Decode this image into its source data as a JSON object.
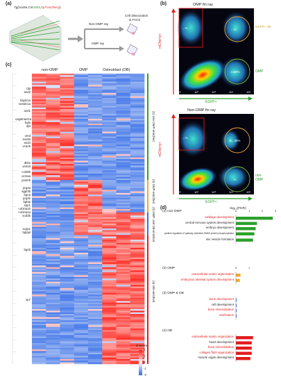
{
  "panel_a": {
    "letter": "(a)",
    "genotype_prefix": "Tg(sox9a Cre;",
    "genotype_ebs": "EBS",
    "genotype_sep": ";",
    "genotype_sp7": "sp7:mCherry",
    "genotype_suffix": ")",
    "arrow_top_label": "Non-OMP ray",
    "arrow_bottom_label": "OMP ray",
    "result_label_1": "Cell dissociation",
    "result_label_2": "& FACS"
  },
  "panel_b": {
    "letter": "(b)",
    "plot1_title": "OMP fin ray",
    "plot2_title": "Non-OMP fin ray",
    "y_axis_label": "mCherry+",
    "x_axis_label": "EGFP+",
    "y_ticks": [
      "10⁵",
      "10⁴",
      "10³",
      "10²",
      "10¹"
    ],
    "x_ticks": [
      "10¹",
      "10²",
      "10³",
      "10⁴",
      "10⁵"
    ],
    "plot1_gate_top_right": "EGFP+ Ob",
    "plot1_gate_bottom_right": "OMP",
    "plot1_pct_left": "...%",
    "plot1_pct_right": "...%",
    "plot1_pct_low": "4.50%",
    "plot2_gate_bottom_right_1": "non-",
    "plot2_gate_bottom_right_2": "OMP",
    "plot2_pct_left": "...%",
    "plot2_pct_right": "E...26%",
    "plot2_pct_low": "...%"
  },
  "panel_c": {
    "letter": "(c)",
    "col_headers": [
      "non-OMP",
      "OMP",
      "Osteoblast (OB)"
    ],
    "genes": [
      "clip",
      "and2",
      "hapln1a",
      "sostdc1a",
      "and1",
      "cagalnact1a",
      "bgla",
      "dpt",
      "omd",
      "sox9a",
      "and4",
      "vcanb",
      "dkk2",
      "wnt16",
      "col28b",
      "ucmaa",
      "postnb",
      "prg4a",
      "agpl3b",
      "bgna",
      "prg4b",
      "bglap",
      "spp1",
      "col10a1b",
      "col10a1a",
      "sod3b",
      "scpp1",
      "bglapl",
      "bgnb",
      "sp7"
    ],
    "cluster_labels": [
      "(1) non-OMP-enriched",
      "(2) OMP-enriched",
      "(3) OMP- and OB-enriched",
      "(4) OB-enriched"
    ],
    "colorbar_title": "Z-score",
    "colorbar_ticks": [
      "2",
      "1",
      "0",
      "-1",
      "-2"
    ]
  },
  "panel_d": {
    "letter": "(d)",
    "axis_label": "-log₁₀(FDR)",
    "groups": [
      {
        "title": "(1) non-OMP",
        "ticks": [
          "0",
          "1",
          "2",
          "3"
        ],
        "terms": [
          {
            "label": "cartilage development",
            "value": 2.8,
            "highlight": true
          },
          {
            "label": "central nervous system development",
            "value": 1.6,
            "highlight": false
          },
          {
            "label": "embryo development",
            "value": 1.5,
            "highlight": false
          },
          {
            "label": "positive regulation of pathway-restricted SMAD protein phosphorylation",
            "value": 1.4,
            "highlight": false
          },
          {
            "label": "otic vesicle formation",
            "value": 1.3,
            "highlight": false
          }
        ]
      },
      {
        "title": "(2) OMP",
        "ticks": [
          "0",
          "1"
        ],
        "terms": [
          {
            "label": "extracellular matrix organization",
            "value": 0.35,
            "highlight": true
          },
          {
            "label": "embryonic skeletal system development",
            "value": 0.3,
            "highlight": true
          }
        ]
      },
      {
        "title": "(3) OMP & OB",
        "ticks": [],
        "terms": [
          {
            "label": "bone development",
            "value": 0.05,
            "highlight": true
          },
          {
            "label": "cell development",
            "value": 0.05,
            "highlight": false
          },
          {
            "label": "bone mineralization",
            "value": 0.05,
            "highlight": true
          },
          {
            "label": "ossification",
            "value": 0.05,
            "highlight": true
          }
        ]
      },
      {
        "title": "(4) OB",
        "ticks": [],
        "terms": [
          {
            "label": "extracellular matrix organization",
            "value": 1.3,
            "highlight": true
          },
          {
            "label": "heart development",
            "value": 1.2,
            "highlight": false
          },
          {
            "label": "bone mineralization",
            "value": 1.2,
            "highlight": true
          },
          {
            "label": "collagen fibril organization",
            "value": 1.2,
            "highlight": true
          },
          {
            "label": "muscle organ development",
            "value": 1.1,
            "highlight": false
          }
        ]
      }
    ]
  },
  "colors": {
    "red": "#e31a1c",
    "green": "#2ca02c",
    "orange": "#f0a830",
    "blue": "#3a6ee8",
    "bar_gray": "#888888"
  }
}
